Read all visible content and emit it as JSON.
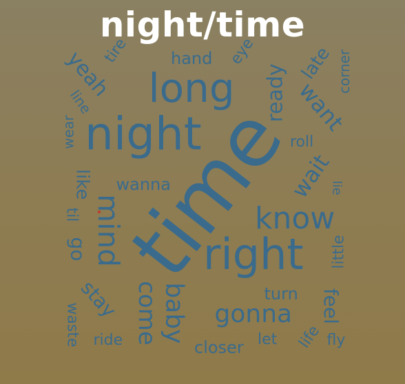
{
  "title": "night/time",
  "colors": {
    "word": "#3a6b8c",
    "title": "#ffffff",
    "dot": "#c0392b"
  },
  "words": [
    "time",
    "night",
    "long",
    "right",
    "know",
    "mind",
    "gonna",
    "baby",
    "come",
    "ready",
    "want",
    "wait",
    "yeah",
    "stay",
    "go",
    "feel",
    "little",
    "like",
    "wanna",
    "hand",
    "late",
    "corner",
    "eye",
    "tire",
    "line",
    "wear",
    "roll",
    "lie",
    "til",
    "turn",
    "closer",
    "let",
    "life",
    "fly",
    "ride",
    "waste"
  ]
}
